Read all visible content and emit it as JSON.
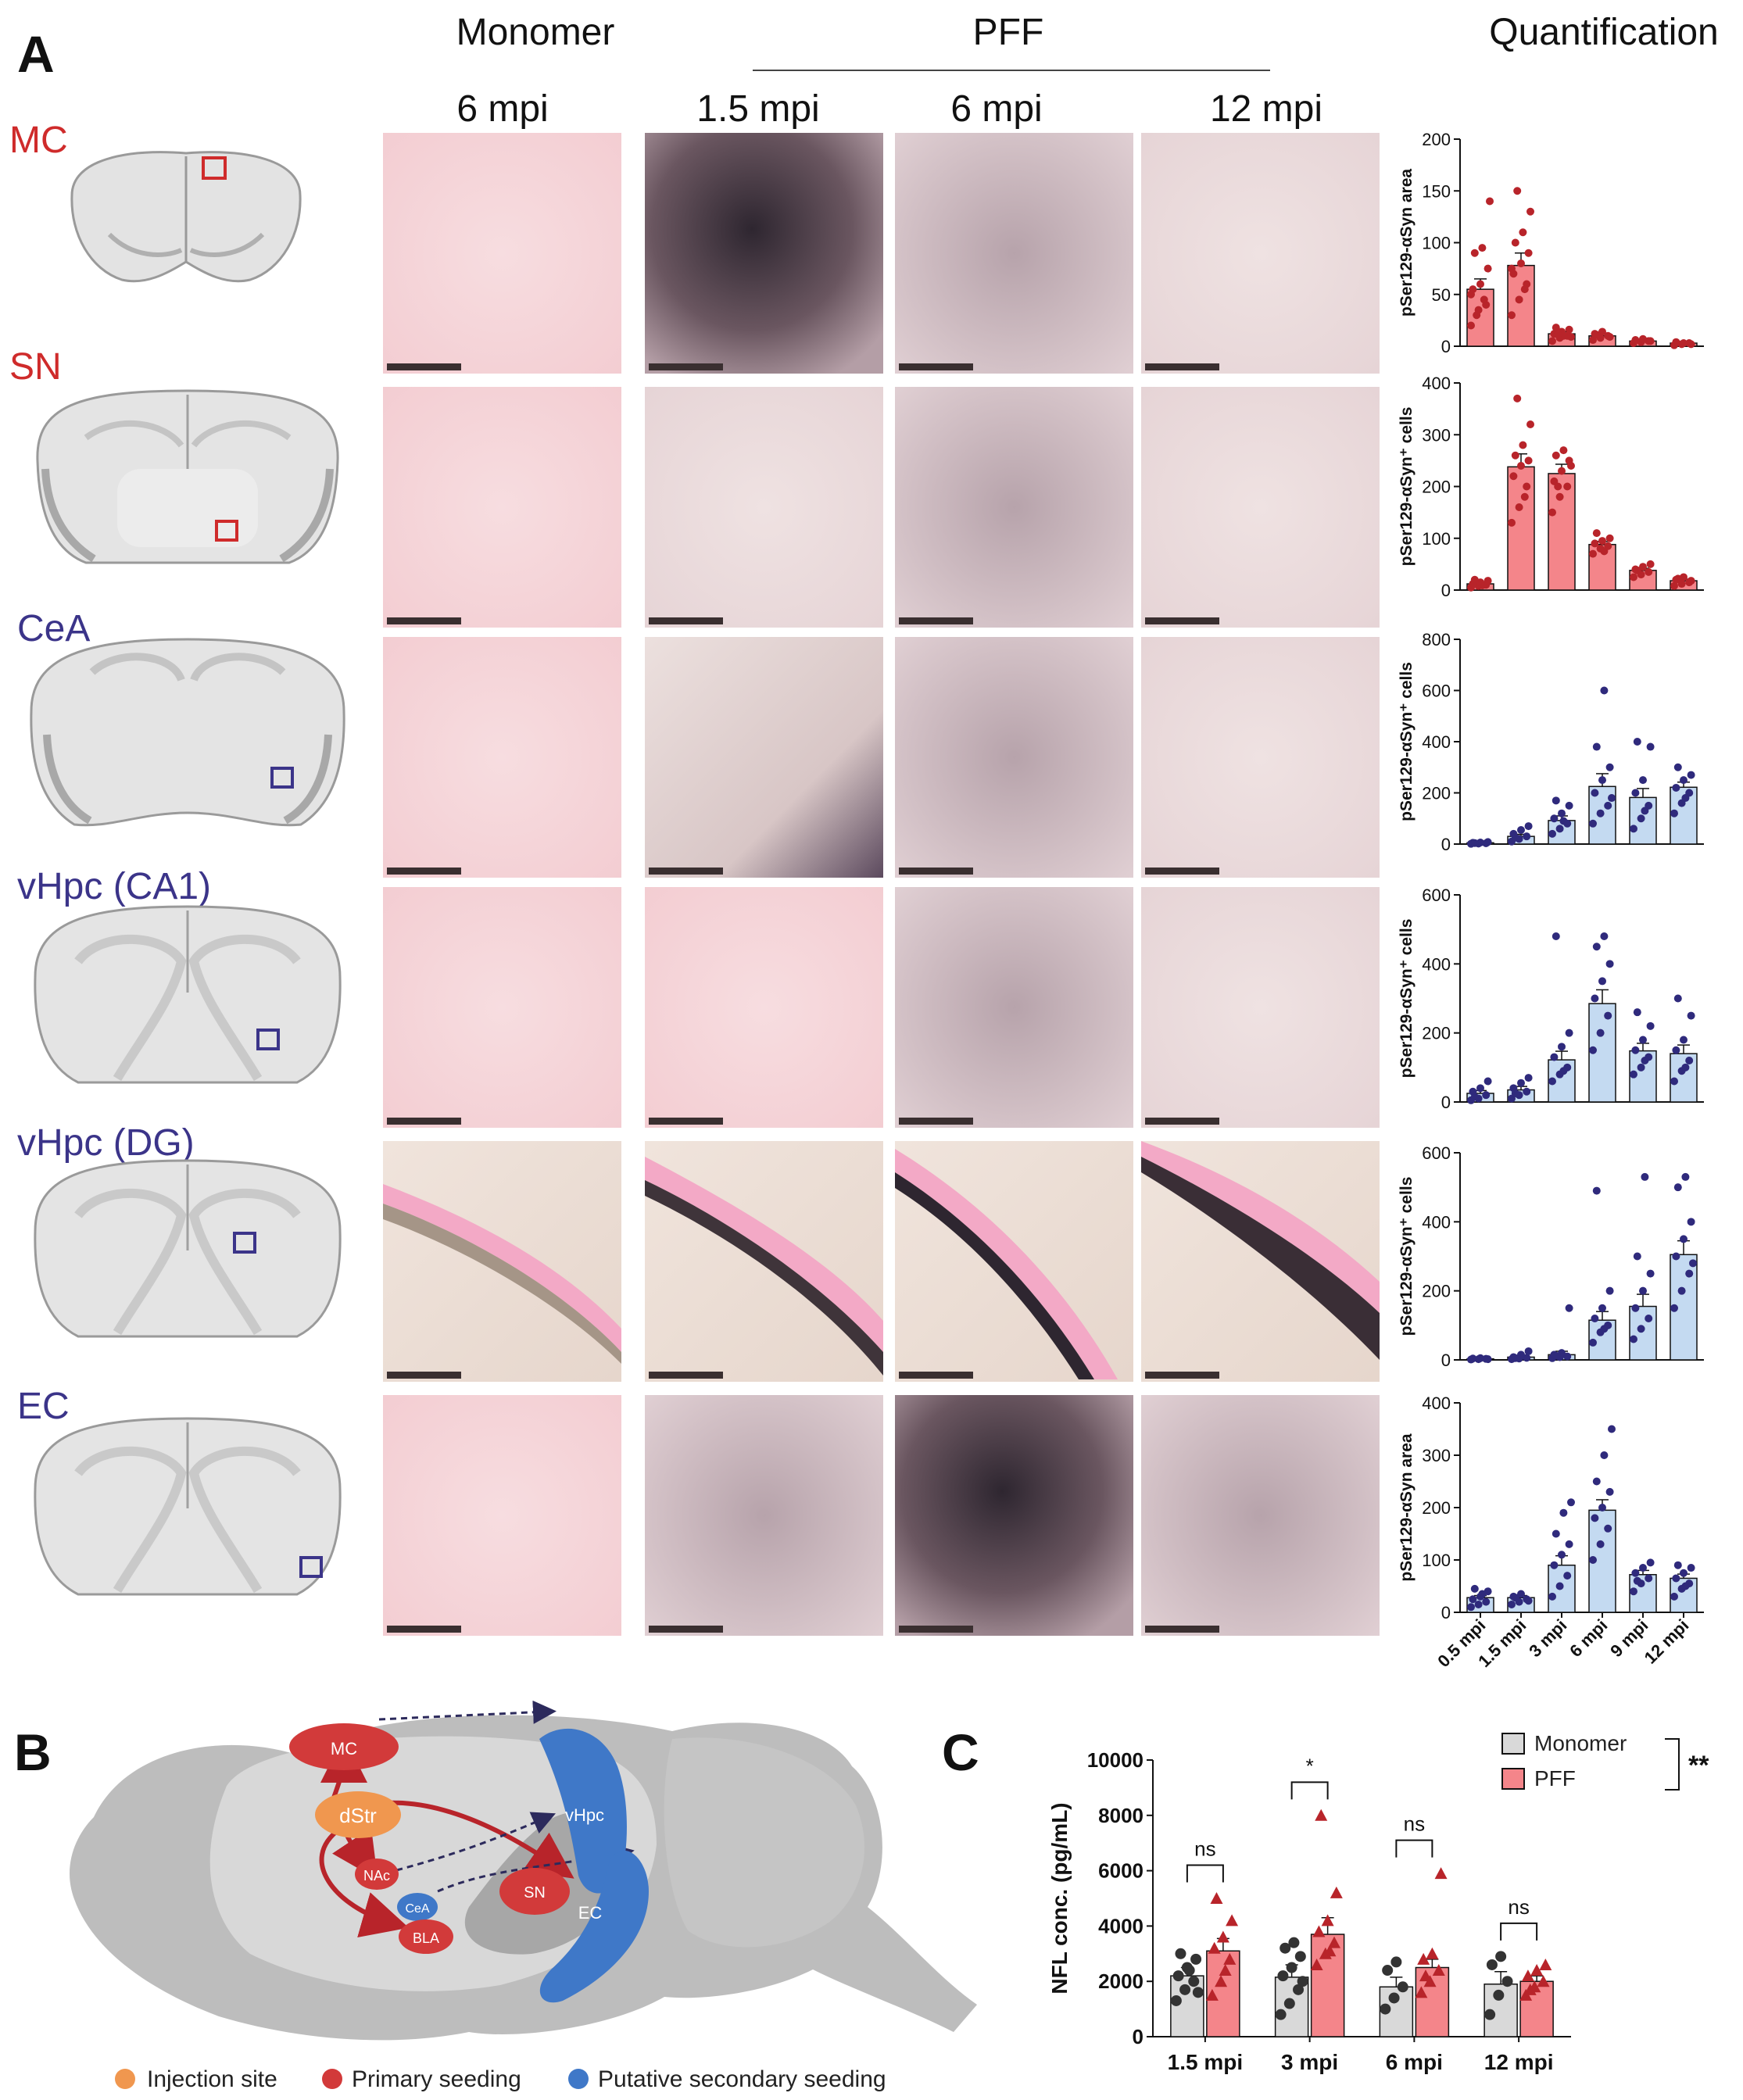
{
  "panel_a": {
    "letter": "A",
    "headers": {
      "monomer": "Monomer",
      "pff": "PFF",
      "quantification": "Quantification",
      "columns": [
        "6 mpi",
        "1.5 mpi",
        "6 mpi",
        "12 mpi"
      ]
    },
    "regions": [
      {
        "label": "MC",
        "color": "#cf2b2b"
      },
      {
        "label": "SN",
        "color": "#cf2b2b"
      },
      {
        "label": "CeA",
        "color": "#3b3489"
      },
      {
        "label": "vHpc (CA1)",
        "color": "#3b3489"
      },
      {
        "label": "vHpc (DG)",
        "color": "#3b3489"
      },
      {
        "label": "EC",
        "color": "#3b3489"
      }
    ],
    "x_categories": [
      "0.5 mpi",
      "1.5 mpi",
      "3 mpi",
      "6 mpi",
      "9 mpi",
      "12 mpi"
    ]
  },
  "panel_b": {
    "letter": "B",
    "nodes": {
      "mc": "MC",
      "dstr": "dStr",
      "nac": "NAc",
      "cea": "CeA",
      "bla": "BLA",
      "sn": "SN",
      "vhpc": "vHpc",
      "ec": "EC"
    },
    "legend": [
      "Injection site",
      "Primary seeding",
      "Putative secondary seeding"
    ],
    "legend_colors": [
      "#f0974f",
      "#d23a3a",
      "#3f78c8"
    ]
  },
  "panel_c": {
    "letter": "C",
    "significance": {
      "overall": "**",
      "pairs": [
        "ns",
        "*",
        "ns",
        "ns"
      ]
    }
  },
  "chart_data": [
    {
      "type": "bar",
      "id": "MC",
      "ylabel": "pSer129-αSyn area",
      "ylim": [
        0,
        200
      ],
      "yticks": [
        0,
        50,
        100,
        150,
        200
      ],
      "categories": [
        "0.5 mpi",
        "1.5 mpi",
        "3 mpi",
        "6 mpi",
        "9 mpi",
        "12 mpi"
      ],
      "values": [
        55,
        78,
        12,
        10,
        5,
        3
      ],
      "errors": [
        10,
        12,
        2,
        2,
        1,
        1
      ],
      "color": "#f4858a",
      "dot_color": "#b8242a",
      "points": [
        [
          20,
          35,
          40,
          55,
          60,
          75,
          90,
          95,
          140,
          30,
          45,
          50
        ],
        [
          30,
          45,
          60,
          70,
          80,
          90,
          100,
          110,
          130,
          150,
          55,
          75
        ],
        [
          5,
          8,
          10,
          12,
          14,
          16,
          18,
          10,
          9,
          11
        ],
        [
          6,
          8,
          10,
          12,
          14,
          9,
          11
        ],
        [
          3,
          4,
          5,
          6,
          7,
          5
        ],
        [
          1,
          2,
          3,
          4,
          3,
          2
        ]
      ]
    },
    {
      "type": "bar",
      "id": "SN",
      "ylabel": "pSer129-αSyn⁺ cells",
      "ylim": [
        0,
        400
      ],
      "yticks": [
        0,
        100,
        200,
        300,
        400
      ],
      "categories": [
        "0.5 mpi",
        "1.5 mpi",
        "3 mpi",
        "6 mpi",
        "9 mpi",
        "12 mpi"
      ],
      "values": [
        12,
        238,
        225,
        88,
        38,
        18
      ],
      "errors": [
        3,
        25,
        18,
        6,
        4,
        3
      ],
      "color": "#f4858a",
      "dot_color": "#b8242a",
      "points": [
        [
          5,
          8,
          10,
          12,
          15,
          18,
          20,
          9
        ],
        [
          130,
          160,
          200,
          220,
          240,
          250,
          260,
          280,
          320,
          370,
          180
        ],
        [
          150,
          180,
          200,
          210,
          230,
          250,
          260,
          270,
          240,
          200
        ],
        [
          70,
          80,
          85,
          90,
          95,
          100,
          110,
          75
        ],
        [
          25,
          30,
          35,
          40,
          45,
          50,
          38
        ],
        [
          8,
          12,
          15,
          20,
          25,
          18,
          22
        ]
      ]
    },
    {
      "type": "bar",
      "id": "CeA",
      "ylabel": "pSer129-αSyn⁺ cells",
      "ylim": [
        0,
        800
      ],
      "yticks": [
        0,
        200,
        400,
        600,
        800
      ],
      "categories": [
        "0.5 mpi",
        "1.5 mpi",
        "3 mpi",
        "6 mpi",
        "9 mpi",
        "12 mpi"
      ],
      "values": [
        5,
        30,
        92,
        225,
        182,
        222
      ],
      "errors": [
        2,
        8,
        18,
        50,
        35,
        20
      ],
      "color": "#c4daf1",
      "dot_color": "#2f2a7c",
      "points": [
        [
          1,
          2,
          3,
          5,
          6,
          8,
          4
        ],
        [
          10,
          20,
          30,
          40,
          55,
          70,
          25
        ],
        [
          40,
          60,
          80,
          100,
          120,
          150,
          170,
          90
        ],
        [
          80,
          120,
          150,
          200,
          250,
          300,
          380,
          600,
          180
        ],
        [
          60,
          100,
          150,
          200,
          250,
          380,
          400,
          130
        ],
        [
          120,
          160,
          200,
          220,
          250,
          270,
          300,
          180
        ]
      ]
    },
    {
      "type": "bar",
      "id": "vHpc CA1",
      "ylabel": "pSer129-αSyn⁺ cells",
      "ylim": [
        0,
        600
      ],
      "yticks": [
        0,
        200,
        400,
        600
      ],
      "categories": [
        "0.5 mpi",
        "1.5 mpi",
        "3 mpi",
        "6 mpi",
        "9 mpi",
        "12 mpi"
      ],
      "values": [
        25,
        35,
        122,
        285,
        148,
        140
      ],
      "errors": [
        8,
        10,
        25,
        40,
        22,
        25
      ],
      "color": "#c4daf1",
      "dot_color": "#2f2a7c",
      "points": [
        [
          5,
          10,
          20,
          30,
          40,
          60,
          15
        ],
        [
          10,
          20,
          30,
          40,
          55,
          70,
          25
        ],
        [
          60,
          80,
          100,
          130,
          160,
          200,
          480,
          90
        ],
        [
          150,
          200,
          250,
          300,
          350,
          400,
          450,
          480
        ],
        [
          80,
          100,
          130,
          150,
          180,
          220,
          260,
          120
        ],
        [
          60,
          90,
          120,
          150,
          180,
          250,
          300,
          100
        ]
      ]
    },
    {
      "type": "bar",
      "id": "vHpc DG",
      "ylabel": "pSer129-αSyn⁺ cells",
      "ylim": [
        0,
        600
      ],
      "yticks": [
        0,
        200,
        400,
        600
      ],
      "categories": [
        "0.5 mpi",
        "1.5 mpi",
        "3 mpi",
        "6 mpi",
        "9 mpi",
        "12 mpi"
      ],
      "values": [
        3,
        8,
        15,
        115,
        155,
        305
      ],
      "errors": [
        1,
        3,
        10,
        25,
        35,
        40
      ],
      "color": "#c4daf1",
      "dot_color": "#2f2a7c",
      "points": [
        [
          1,
          2,
          3,
          4,
          5,
          2
        ],
        [
          2,
          4,
          6,
          8,
          15,
          25,
          5
        ],
        [
          5,
          8,
          10,
          15,
          20,
          150,
          12
        ],
        [
          50,
          80,
          100,
          120,
          150,
          200,
          490,
          90
        ],
        [
          60,
          90,
          120,
          150,
          200,
          250,
          300,
          530
        ],
        [
          150,
          200,
          250,
          300,
          350,
          400,
          500,
          530,
          280
        ]
      ]
    },
    {
      "type": "bar",
      "id": "EC",
      "ylabel": "pSer129-αSyn area",
      "ylim": [
        0,
        400
      ],
      "yticks": [
        0,
        100,
        200,
        300,
        400
      ],
      "categories": [
        "0.5 mpi",
        "1.5 mpi",
        "3 mpi",
        "6 mpi",
        "9 mpi",
        "12 mpi"
      ],
      "values": [
        28,
        28,
        90,
        195,
        72,
        65
      ],
      "errors": [
        4,
        4,
        18,
        20,
        8,
        8
      ],
      "color": "#c4daf1",
      "dot_color": "#2f2a7c",
      "points": [
        [
          10,
          15,
          20,
          25,
          30,
          40,
          45,
          35
        ],
        [
          15,
          20,
          25,
          30,
          35,
          22,
          28
        ],
        [
          30,
          50,
          70,
          90,
          110,
          130,
          150,
          190,
          210
        ],
        [
          100,
          130,
          160,
          180,
          200,
          230,
          250,
          300,
          350
        ],
        [
          40,
          55,
          65,
          75,
          85,
          95,
          60
        ],
        [
          30,
          45,
          55,
          65,
          75,
          85,
          90,
          50
        ]
      ]
    },
    {
      "type": "bar",
      "id": "NFL",
      "ylabel": "NFL conc. (pg/mL)",
      "ylim": [
        0,
        10000
      ],
      "yticks": [
        0,
        2000,
        4000,
        6000,
        8000,
        10000
      ],
      "categories": [
        "1.5 mpi",
        "3 mpi",
        "6 mpi",
        "12 mpi"
      ],
      "series": [
        {
          "name": "Monomer",
          "color": "#d9d9d9",
          "dot_color": "#333333",
          "values": [
            2200,
            2150,
            1800,
            1900
          ],
          "errors": [
            300,
            450,
            350,
            450
          ],
          "points": [
            [
              1300,
              1700,
              2000,
              2200,
              2500,
              2800,
              3000,
              2400,
              1600
            ],
            [
              800,
              1200,
              1700,
              2200,
              2500,
              2900,
              3200,
              3400,
              2000
            ],
            [
              1000,
              1400,
              1800,
              2400,
              2700
            ],
            [
              800,
              1500,
              2000,
              2600,
              2900
            ]
          ]
        },
        {
          "name": "PFF",
          "color": "#f4858a",
          "dot_color": "#b8242a",
          "values": [
            3100,
            3700,
            2500,
            2000
          ],
          "errors": [
            450,
            600,
            300,
            200
          ],
          "points": [
            [
              1500,
              2000,
              2800,
              3200,
              3600,
              4200,
              5000,
              2400
            ],
            [
              2600,
              3000,
              3400,
              3800,
              4200,
              5200,
              8000,
              3100
            ],
            [
              1600,
              2000,
              2400,
              2800,
              3000,
              5900,
              2200
            ],
            [
              1500,
              1800,
              2000,
              2200,
              2400,
              2600,
              1700
            ]
          ]
        }
      ]
    }
  ]
}
